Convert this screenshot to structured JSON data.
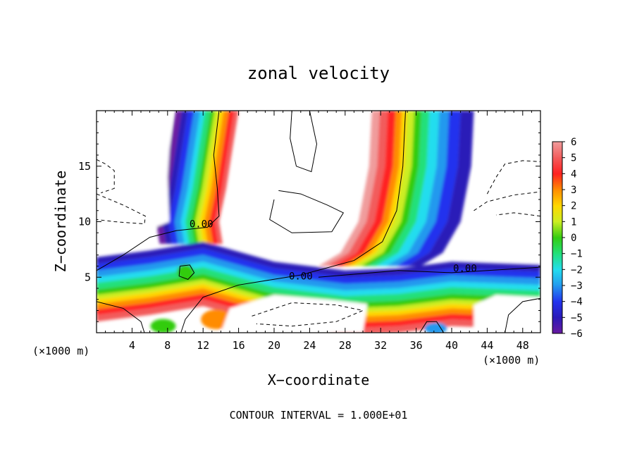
{
  "chart_data": {
    "type": "heatmap",
    "title": "zonal velocity",
    "xlabel": "X−coordinate",
    "ylabel": "Z−coordinate",
    "x_units_left": "(×1000 m)",
    "x_units_right": "(×1000 m)",
    "footer": "CONTOUR INTERVAL = 1.000E+01",
    "xlim": [
      0,
      50
    ],
    "ylim": [
      0,
      20
    ],
    "x_ticks": [
      4,
      8,
      12,
      16,
      20,
      24,
      28,
      32,
      36,
      40,
      44,
      48
    ],
    "y_ticks": [
      5,
      10,
      15
    ],
    "colorbar_ticks": [
      "6",
      "5",
      "4",
      "3",
      "2",
      "1",
      "0",
      "−1",
      "−2",
      "−3",
      "−4",
      "−5",
      "−6"
    ],
    "colorbar_range": [
      -6,
      6
    ],
    "contour_labels": [
      {
        "text": "0.00",
        "x": 11.8,
        "y": 9.5
      },
      {
        "text": "0.00",
        "x": 23.0,
        "y": 4.8
      },
      {
        "text": "0.00",
        "x": 41.5,
        "y": 5.5
      }
    ],
    "colors": {
      "c6": "#f09c9c",
      "c5": "#f25c5c",
      "c4": "#ff2020",
      "c3": "#ff8c00",
      "c2": "#ffd700",
      "c1": "#ccee22",
      "c0": "#33cc11",
      "cm1": "#22e07a",
      "cm2": "#22ddee",
      "cm3": "#2299ee",
      "cm4": "#2233ee",
      "cm5": "#2a1ab8",
      "cm6": "#6a1aa0"
    }
  }
}
